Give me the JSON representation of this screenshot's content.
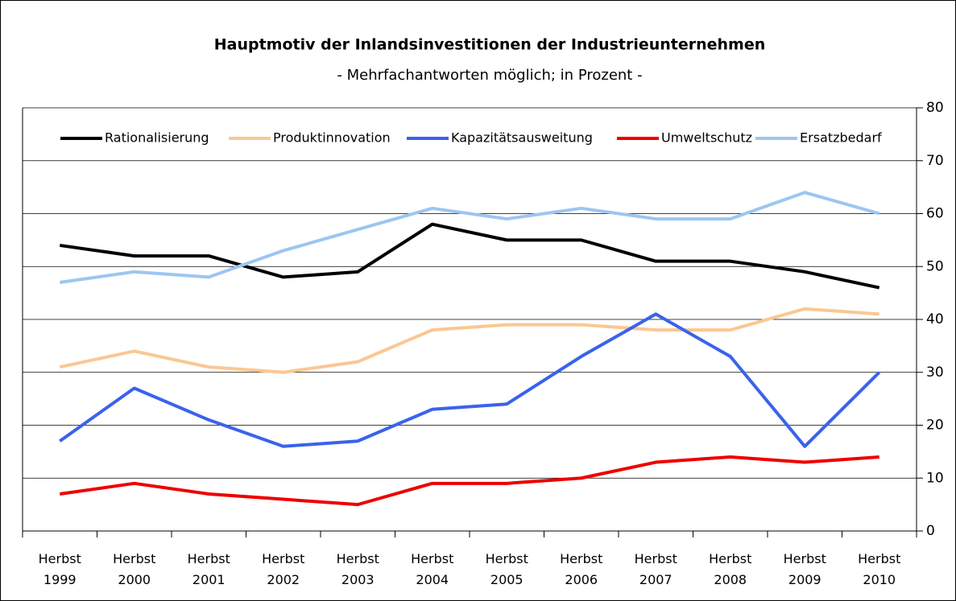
{
  "chart_data": {
    "type": "line",
    "title": "Hauptmotiv der Inlandsinvestitionen der Industrieunternehmen",
    "subtitle": "- Mehrfachantworten möglich; in Prozent -",
    "categories": [
      "Herbst 1999",
      "Herbst 2000",
      "Herbst 2001",
      "Herbst 2002",
      "Herbst 2003",
      "Herbst 2004",
      "Herbst 2005",
      "Herbst 2006",
      "Herbst 2007",
      "Herbst 2008",
      "Herbst 2009",
      "Herbst 2010"
    ],
    "series": [
      {
        "name": "Rationalisierung",
        "color": "#000000",
        "values": [
          54,
          52,
          52,
          48,
          49,
          58,
          55,
          55,
          51,
          51,
          49,
          46
        ]
      },
      {
        "name": "Produktinnovation",
        "color": "#fbc793",
        "values": [
          31,
          34,
          31,
          30,
          32,
          38,
          39,
          39,
          38,
          38,
          42,
          41
        ]
      },
      {
        "name": "Kapazitätsausweitung",
        "color": "#3a62ec",
        "values": [
          17,
          27,
          21,
          16,
          17,
          23,
          24,
          33,
          41,
          33,
          16,
          30
        ]
      },
      {
        "name": "Umweltschutz",
        "color": "#ee0000",
        "values": [
          7,
          9,
          7,
          6,
          5,
          9,
          9,
          10,
          13,
          14,
          13,
          14
        ]
      },
      {
        "name": "Ersatzbedarf",
        "color": "#9cc6f1",
        "values": [
          47,
          49,
          48,
          53,
          57,
          61,
          59,
          61,
          59,
          59,
          64,
          60
        ]
      }
    ],
    "ylim": [
      0,
      80
    ],
    "yticks": [
      0,
      10,
      20,
      30,
      40,
      50,
      60,
      70,
      80
    ],
    "grid": true,
    "legend": "top"
  }
}
